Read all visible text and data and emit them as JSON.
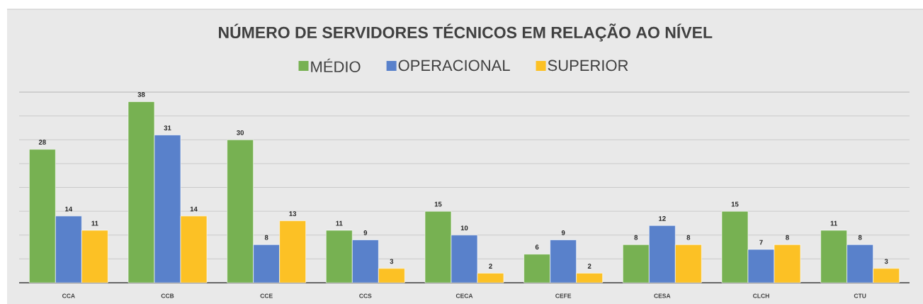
{
  "chart_data": {
    "type": "bar",
    "title": "NÚMERO DE SERVIDORES TÉCNICOS EM RELAÇÃO AO NÍVEL",
    "categories": [
      "CCA",
      "CCB",
      "CCE",
      "CCS",
      "CECA",
      "CEFE",
      "CESA",
      "CLCH",
      "CTU"
    ],
    "series": [
      {
        "name": "MÉDIO",
        "color": "#77b152",
        "values": [
          28,
          38,
          30,
          11,
          15,
          6,
          8,
          15,
          11
        ]
      },
      {
        "name": "OPERACIONAL",
        "color": "#5981cb",
        "values": [
          14,
          31,
          8,
          9,
          10,
          9,
          12,
          7,
          8
        ]
      },
      {
        "name": "SUPERIOR",
        "color": "#fcc125",
        "values": [
          11,
          14,
          13,
          3,
          2,
          2,
          8,
          8,
          3
        ]
      }
    ],
    "ylim": [
      0,
      40
    ],
    "grid": "y",
    "legend": "top",
    "data_labels": true,
    "tick_labels": "x"
  }
}
